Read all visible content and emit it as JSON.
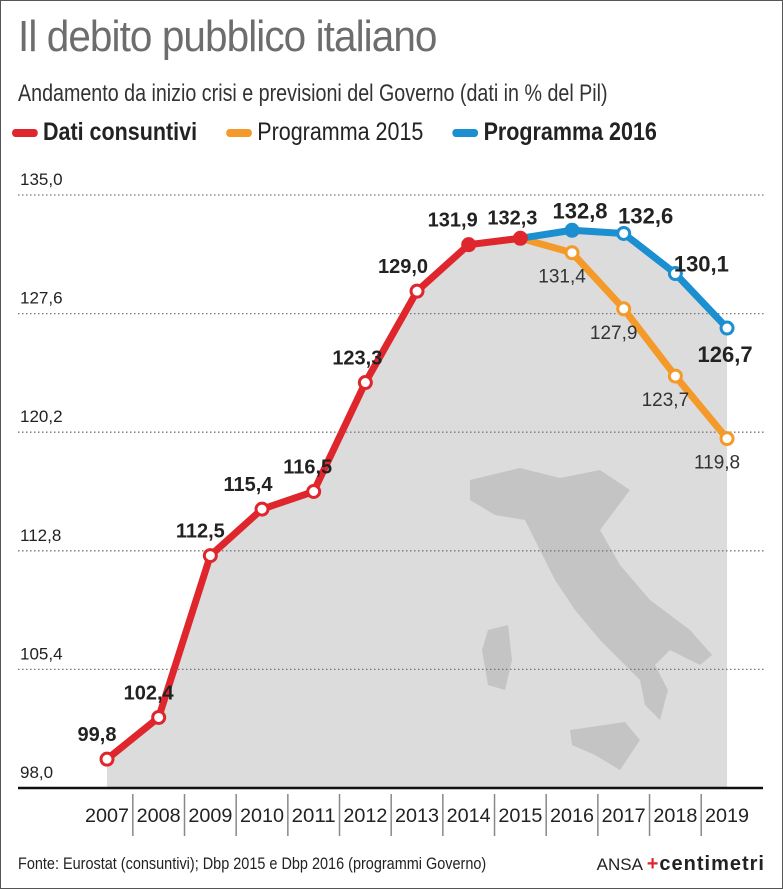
{
  "chart_data": {
    "type": "line",
    "title": "Il debito pubblico italiano",
    "subtitle": "Andamento da inizio crisi e previsioni del Governo (dati in % del Pil)",
    "x": [
      "2007",
      "2008",
      "2009",
      "2010",
      "2011",
      "2012",
      "2013",
      "2014",
      "2015",
      "2016",
      "2017",
      "2018",
      "2019"
    ],
    "yticks": [
      "135,0",
      "127,6",
      "120,2",
      "112,8",
      "105,4",
      "98,0"
    ],
    "ytick_values": [
      135.0,
      127.6,
      120.2,
      112.8,
      105.4,
      98.0
    ],
    "ylim": [
      98.0,
      135.0
    ],
    "grid": "dotted horizontal",
    "legend_placement": "top",
    "series": [
      {
        "name": "Dati consuntivi",
        "color": "#e0262d",
        "x": [
          "2007",
          "2008",
          "2009",
          "2010",
          "2011",
          "2012",
          "2013",
          "2014",
          "2015"
        ],
        "values": [
          99.8,
          102.4,
          112.5,
          115.4,
          116.5,
          123.3,
          129.0,
          131.9,
          132.3
        ],
        "labels": [
          "99,8",
          "102,4",
          "112,5",
          "115,4",
          "116,5",
          "123,3",
          "129,0",
          "131,9",
          "132,3"
        ]
      },
      {
        "name": "Programma 2015",
        "color": "#f39a2b",
        "x": [
          "2015",
          "2016",
          "2017",
          "2018",
          "2019"
        ],
        "values": [
          132.3,
          131.4,
          127.9,
          123.7,
          119.8
        ],
        "labels": [
          "",
          "131,4",
          "127,9",
          "123,7",
          "119,8"
        ]
      },
      {
        "name": "Programma 2016",
        "color": "#1b8fd0",
        "x": [
          "2015",
          "2016",
          "2017",
          "2018",
          "2019"
        ],
        "values": [
          132.3,
          132.8,
          132.6,
          130.1,
          126.7
        ],
        "labels": [
          "",
          "132,8",
          "132,6",
          "130,1",
          "126,7"
        ]
      }
    ]
  },
  "source": "Fonte: Eurostat (consuntivi); Dbp 2015 e Dbp 2016 (programmi Governo)",
  "brand": {
    "ansa": "ANSA",
    "centimetri": "centimetri"
  }
}
